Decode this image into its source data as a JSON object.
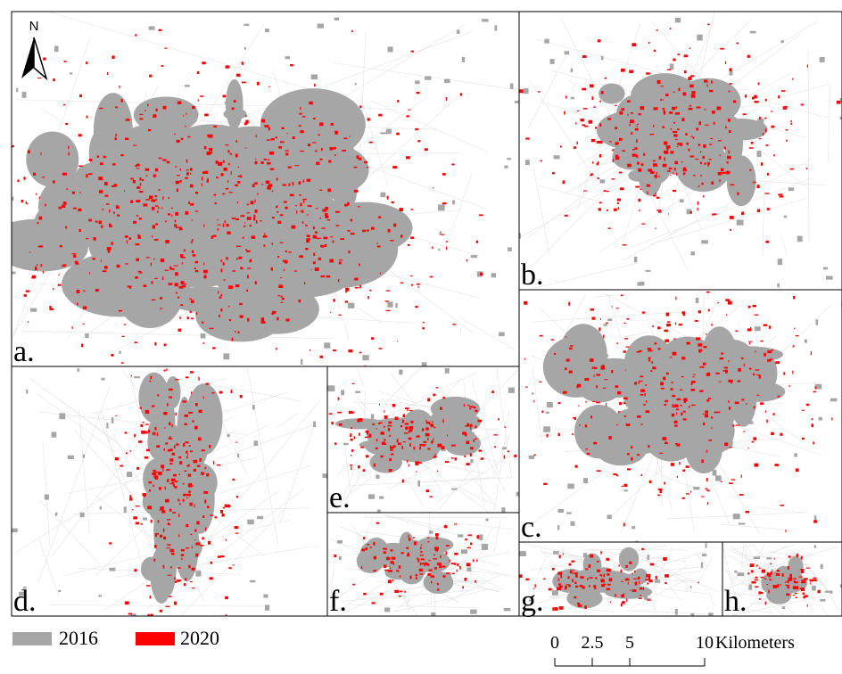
{
  "north_arrow": {
    "label": "N"
  },
  "panels": [
    {
      "label": "a."
    },
    {
      "label": "b."
    },
    {
      "label": "c."
    },
    {
      "label": "d."
    },
    {
      "label": "e."
    },
    {
      "label": "f."
    },
    {
      "label": "g."
    },
    {
      "label": "h."
    }
  ],
  "legend": [
    {
      "label": "2016",
      "color": "#a6a6a6"
    },
    {
      "label": "2020",
      "color": "#ff0000"
    }
  ],
  "scale_bar": {
    "ticks": [
      0,
      2.5,
      5,
      10
    ],
    "unit": "Kilometers"
  }
}
